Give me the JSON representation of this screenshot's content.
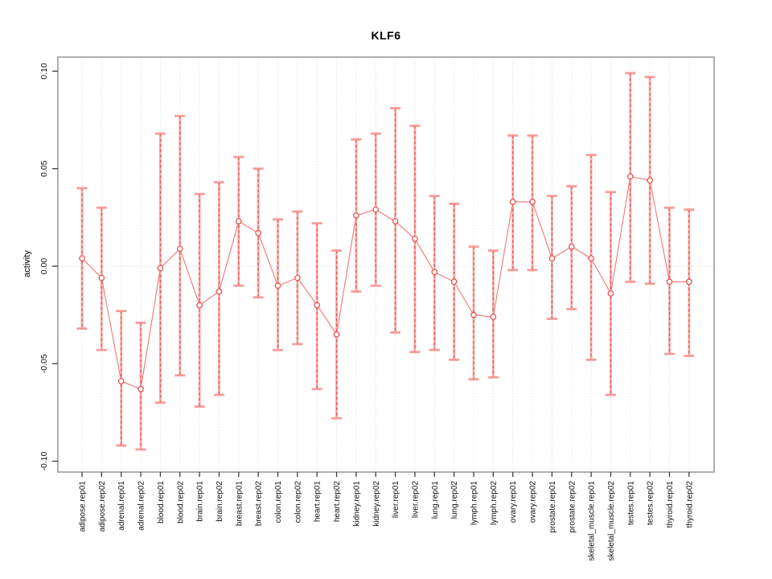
{
  "chart_data": {
    "type": "line",
    "subtype": "points-with-error-bars",
    "title": "KLF6",
    "xlabel": "",
    "ylabel": "activity",
    "ylim": [
      -0.107,
      0.107
    ],
    "yticks": [
      0.1,
      0.05,
      0.0,
      -0.05,
      -0.1
    ],
    "ytick_labels": [
      "0.10",
      "0.05",
      "0.00",
      "-0.05",
      "-0.10"
    ],
    "grid": "dotted vertical gridline at each category; dotted horizontal line at y=0",
    "legend": "none",
    "categories": [
      "adipose.rep01",
      "adipose.rep02",
      "adrenal.rep01",
      "adrenal.rep02",
      "blood.rep01",
      "blood.rep02",
      "brain.rep01",
      "brain.rep02",
      "breast.rep01",
      "breast.rep02",
      "colon.rep01",
      "colon.rep02",
      "heart.rep01",
      "heart.rep02",
      "kidney.rep01",
      "kidney.rep02",
      "liver.rep01",
      "liver.rep02",
      "lung.rep01",
      "lung.rep02",
      "lymph.rep01",
      "lymph.rep02",
      "ovary.rep01",
      "ovary.rep02",
      "prostate.rep01",
      "prostate.rep02",
      "skeletal_muscle.rep01",
      "skeletal_muscle.rep02",
      "testes.rep01",
      "testes.rep02",
      "thyroid.rep01",
      "thyroid.rep02"
    ],
    "points": [
      {
        "label": "adipose.rep01",
        "value": 0.004,
        "lo": -0.032,
        "hi": 0.04
      },
      {
        "label": "adipose.rep02",
        "value": -0.006,
        "lo": -0.043,
        "hi": 0.03
      },
      {
        "label": "adrenal.rep01",
        "value": -0.059,
        "lo": -0.092,
        "hi": -0.023
      },
      {
        "label": "adrenal.rep02",
        "value": -0.063,
        "lo": -0.094,
        "hi": -0.029
      },
      {
        "label": "blood.rep01",
        "value": -0.001,
        "lo": -0.07,
        "hi": 0.068
      },
      {
        "label": "blood.rep02",
        "value": 0.009,
        "lo": -0.056,
        "hi": 0.077
      },
      {
        "label": "brain.rep01",
        "value": -0.02,
        "lo": -0.072,
        "hi": 0.037
      },
      {
        "label": "brain.rep02",
        "value": -0.013,
        "lo": -0.066,
        "hi": 0.043
      },
      {
        "label": "breast.rep01",
        "value": 0.023,
        "lo": -0.01,
        "hi": 0.056
      },
      {
        "label": "breast.rep02",
        "value": 0.017,
        "lo": -0.016,
        "hi": 0.05
      },
      {
        "label": "colon.rep01",
        "value": -0.01,
        "lo": -0.043,
        "hi": 0.024
      },
      {
        "label": "colon.rep02",
        "value": -0.006,
        "lo": -0.04,
        "hi": 0.028
      },
      {
        "label": "heart.rep01",
        "value": -0.02,
        "lo": -0.063,
        "hi": 0.022
      },
      {
        "label": "heart.rep02",
        "value": -0.035,
        "lo": -0.078,
        "hi": 0.008
      },
      {
        "label": "kidney.rep01",
        "value": 0.026,
        "lo": -0.013,
        "hi": 0.065
      },
      {
        "label": "kidney.rep02",
        "value": 0.029,
        "lo": -0.01,
        "hi": 0.068
      },
      {
        "label": "liver.rep01",
        "value": 0.023,
        "lo": -0.034,
        "hi": 0.081
      },
      {
        "label": "liver.rep02",
        "value": 0.014,
        "lo": -0.044,
        "hi": 0.072
      },
      {
        "label": "lung.rep01",
        "value": -0.003,
        "lo": -0.043,
        "hi": 0.036
      },
      {
        "label": "lung.rep02",
        "value": -0.008,
        "lo": -0.048,
        "hi": 0.032
      },
      {
        "label": "lymph.rep01",
        "value": -0.025,
        "lo": -0.058,
        "hi": 0.01
      },
      {
        "label": "lymph.rep02",
        "value": -0.026,
        "lo": -0.057,
        "hi": 0.008
      },
      {
        "label": "ovary.rep01",
        "value": 0.033,
        "lo": -0.002,
        "hi": 0.067
      },
      {
        "label": "ovary.rep02",
        "value": 0.033,
        "lo": -0.002,
        "hi": 0.067
      },
      {
        "label": "prostate.rep01",
        "value": 0.004,
        "lo": -0.027,
        "hi": 0.036
      },
      {
        "label": "prostate.rep02",
        "value": 0.01,
        "lo": -0.022,
        "hi": 0.041
      },
      {
        "label": "skeletal_muscle.rep01",
        "value": 0.004,
        "lo": -0.048,
        "hi": 0.057
      },
      {
        "label": "skeletal_muscle.rep02",
        "value": -0.014,
        "lo": -0.066,
        "hi": 0.038
      },
      {
        "label": "testes.rep01",
        "value": 0.046,
        "lo": -0.008,
        "hi": 0.099
      },
      {
        "label": "testes.rep02",
        "value": 0.044,
        "lo": -0.009,
        "hi": 0.097
      },
      {
        "label": "thyroid.rep01",
        "value": -0.008,
        "lo": -0.045,
        "hi": 0.03
      },
      {
        "label": "thyroid.rep02",
        "value": -0.008,
        "lo": -0.046,
        "hi": 0.029
      }
    ],
    "colors": {
      "point_stroke": "#e9534f",
      "error_dash": "#e9534f",
      "error_band": "#f6918e",
      "series_line": "#f2807d",
      "grid": "#d9d9d9",
      "frame": "#9c9c9c",
      "tick": "#3a3a3a",
      "text": "#111111"
    }
  }
}
